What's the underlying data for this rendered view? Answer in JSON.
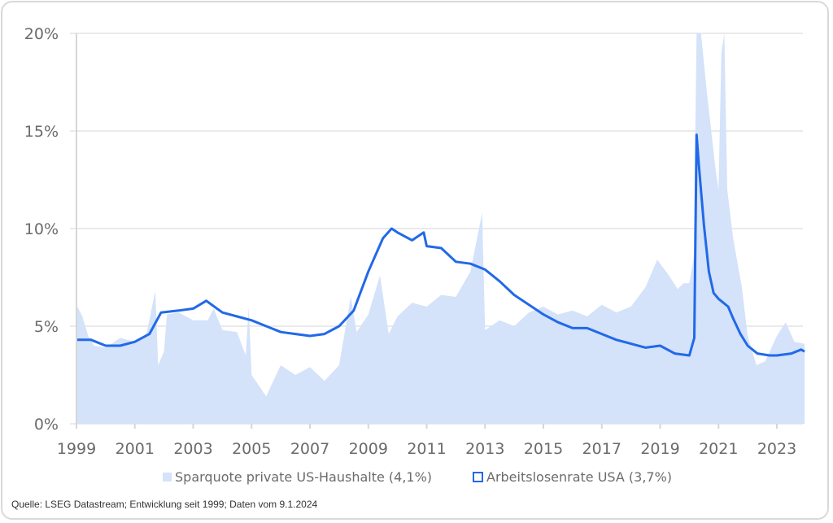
{
  "chart_data": {
    "type": "area+line",
    "title": "",
    "xlabel": "",
    "ylabel": "",
    "xlim": [
      1999,
      2023.95
    ],
    "ylim": [
      0,
      20
    ],
    "grid": true,
    "legend_position": "bottom",
    "x_ticks": [
      "1999",
      "2001",
      "2003",
      "2005",
      "2007",
      "2009",
      "2011",
      "2013",
      "2015",
      "2017",
      "2019",
      "2021",
      "2023"
    ],
    "y_ticks": [
      "0%",
      "5%",
      "10%",
      "15%",
      "20%"
    ],
    "colors": {
      "savings_fill": "#d4e2fa",
      "unemployment_line": "#2169e8",
      "grid": "#e3e3e3"
    },
    "series": [
      {
        "name": "Sparquote private US-Haushalte (4,1%)",
        "kind": "area",
        "points": [
          [
            1999,
            6.1
          ],
          [
            1999.2,
            5.5
          ],
          [
            1999.4,
            4.5
          ],
          [
            1999.6,
            4.0
          ],
          [
            2000,
            3.9
          ],
          [
            2000.5,
            4.4
          ],
          [
            2001,
            4.2
          ],
          [
            2001.4,
            4.6
          ],
          [
            2001.7,
            6.8
          ],
          [
            2001.8,
            3.0
          ],
          [
            2002,
            3.7
          ],
          [
            2002.1,
            5.6
          ],
          [
            2002.5,
            5.7
          ],
          [
            2003,
            5.3
          ],
          [
            2003.5,
            5.3
          ],
          [
            2003.7,
            5.9
          ],
          [
            2004,
            4.8
          ],
          [
            2004.5,
            4.7
          ],
          [
            2004.8,
            3.5
          ],
          [
            2004.9,
            6.0
          ],
          [
            2005.0,
            2.5
          ],
          [
            2005.5,
            1.4
          ],
          [
            2006,
            3.0
          ],
          [
            2006.5,
            2.5
          ],
          [
            2007,
            2.9
          ],
          [
            2007.5,
            2.2
          ],
          [
            2008,
            3.0
          ],
          [
            2008.4,
            6.5
          ],
          [
            2008.6,
            4.7
          ],
          [
            2009,
            5.6
          ],
          [
            2009.4,
            7.6
          ],
          [
            2009.7,
            4.6
          ],
          [
            2010,
            5.5
          ],
          [
            2010.5,
            6.2
          ],
          [
            2011,
            6.0
          ],
          [
            2011.5,
            6.6
          ],
          [
            2012,
            6.5
          ],
          [
            2012.5,
            7.8
          ],
          [
            2012.9,
            10.8
          ],
          [
            2013.0,
            4.8
          ],
          [
            2013.5,
            5.3
          ],
          [
            2014,
            5.0
          ],
          [
            2014.5,
            5.7
          ],
          [
            2015,
            6.0
          ],
          [
            2015.5,
            5.6
          ],
          [
            2016,
            5.8
          ],
          [
            2016.5,
            5.5
          ],
          [
            2017,
            6.1
          ],
          [
            2017.5,
            5.7
          ],
          [
            2018,
            6.0
          ],
          [
            2018.5,
            7.0
          ],
          [
            2018.9,
            8.4
          ],
          [
            2019.3,
            7.6
          ],
          [
            2019.6,
            6.9
          ],
          [
            2019.8,
            7.2
          ],
          [
            2020.0,
            7.2
          ],
          [
            2020.15,
            8.5
          ],
          [
            2020.25,
            33
          ],
          [
            2020.4,
            22
          ],
          [
            2020.6,
            17
          ],
          [
            2020.9,
            13
          ],
          [
            2021.0,
            12
          ],
          [
            2021.1,
            19
          ],
          [
            2021.2,
            27
          ],
          [
            2021.3,
            12
          ],
          [
            2021.5,
            9.5
          ],
          [
            2021.8,
            7.0
          ],
          [
            2022,
            4.5
          ],
          [
            2022.3,
            3.0
          ],
          [
            2022.6,
            3.2
          ],
          [
            2023,
            4.5
          ],
          [
            2023.3,
            5.2
          ],
          [
            2023.6,
            4.2
          ],
          [
            2023.95,
            4.1
          ]
        ]
      },
      {
        "name": "Arbeitslosenrate USA (3,7%)",
        "kind": "line",
        "points": [
          [
            1999,
            4.3
          ],
          [
            1999.5,
            4.3
          ],
          [
            2000,
            4.0
          ],
          [
            2000.5,
            4.0
          ],
          [
            2001,
            4.2
          ],
          [
            2001.5,
            4.6
          ],
          [
            2001.9,
            5.7
          ],
          [
            2002.5,
            5.8
          ],
          [
            2003,
            5.9
          ],
          [
            2003.45,
            6.3
          ],
          [
            2004,
            5.7
          ],
          [
            2004.5,
            5.5
          ],
          [
            2005,
            5.3
          ],
          [
            2005.5,
            5.0
          ],
          [
            2006,
            4.7
          ],
          [
            2006.5,
            4.6
          ],
          [
            2007,
            4.5
          ],
          [
            2007.5,
            4.6
          ],
          [
            2008,
            5.0
          ],
          [
            2008.5,
            5.8
          ],
          [
            2009,
            7.8
          ],
          [
            2009.5,
            9.5
          ],
          [
            2009.8,
            10.0
          ],
          [
            2010,
            9.8
          ],
          [
            2010.5,
            9.4
          ],
          [
            2010.9,
            9.8
          ],
          [
            2011,
            9.1
          ],
          [
            2011.5,
            9.0
          ],
          [
            2012,
            8.3
          ],
          [
            2012.5,
            8.2
          ],
          [
            2013,
            7.9
          ],
          [
            2013.5,
            7.3
          ],
          [
            2014,
            6.6
          ],
          [
            2014.5,
            6.1
          ],
          [
            2015,
            5.6
          ],
          [
            2015.5,
            5.2
          ],
          [
            2016,
            4.9
          ],
          [
            2016.5,
            4.9
          ],
          [
            2017,
            4.6
          ],
          [
            2017.5,
            4.3
          ],
          [
            2018,
            4.1
          ],
          [
            2018.5,
            3.9
          ],
          [
            2019,
            4.0
          ],
          [
            2019.5,
            3.6
          ],
          [
            2020.0,
            3.5
          ],
          [
            2020.17,
            4.4
          ],
          [
            2020.25,
            14.8
          ],
          [
            2020.33,
            13.2
          ],
          [
            2020.5,
            10.2
          ],
          [
            2020.67,
            7.8
          ],
          [
            2020.83,
            6.7
          ],
          [
            2021,
            6.4
          ],
          [
            2021.33,
            6.0
          ],
          [
            2021.5,
            5.4
          ],
          [
            2021.75,
            4.6
          ],
          [
            2022,
            4.0
          ],
          [
            2022.33,
            3.6
          ],
          [
            2022.75,
            3.5
          ],
          [
            2023,
            3.5
          ],
          [
            2023.5,
            3.6
          ],
          [
            2023.83,
            3.8
          ],
          [
            2023.95,
            3.7
          ]
        ]
      }
    ]
  },
  "legend": {
    "savings": "Sparquote private US-Haushalte (4,1%)",
    "unemployment": "Arbeitslosenrate USA (3,7%)"
  },
  "source": "Quelle: LSEG Datastream; Entwicklung seit 1999; Daten vom 9.1.2024"
}
